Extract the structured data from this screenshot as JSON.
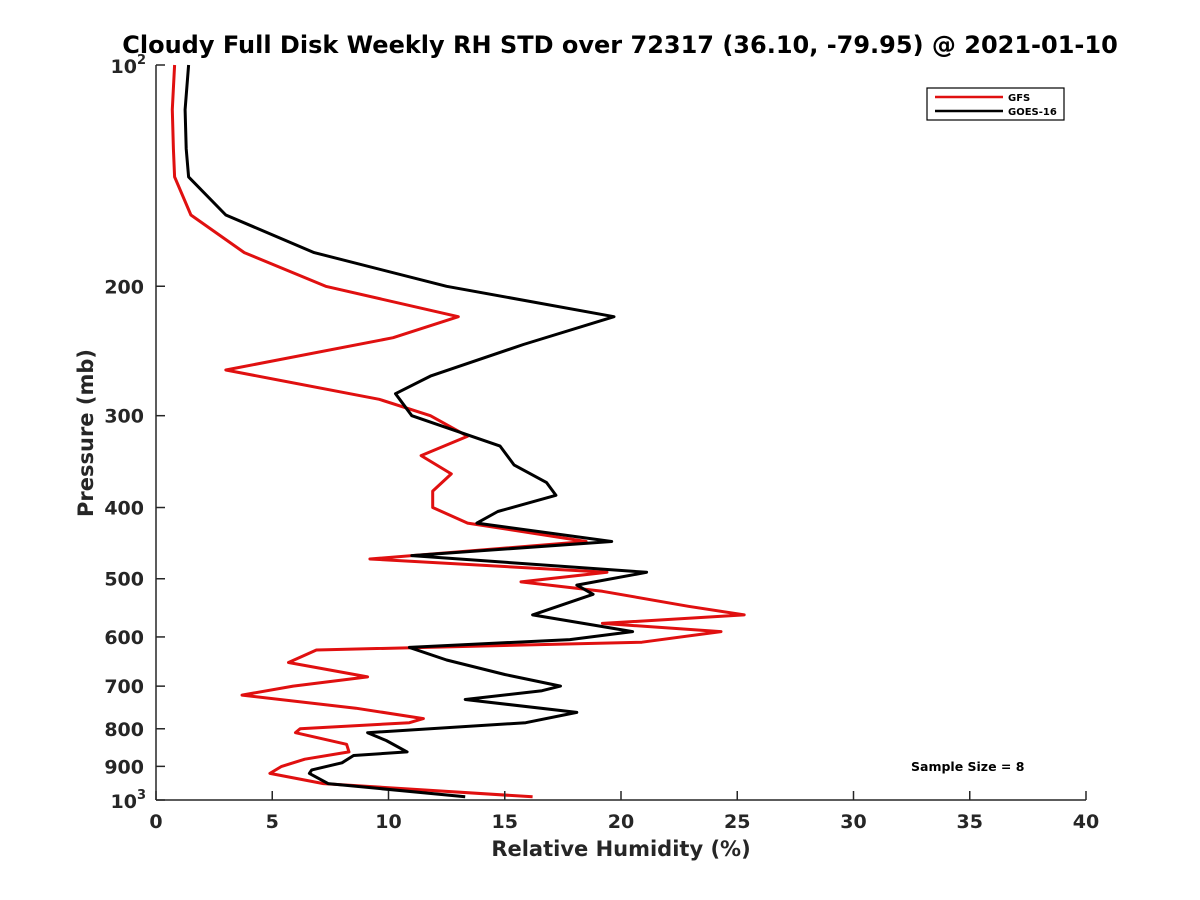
{
  "chart_data": {
    "type": "line",
    "title": "Cloudy Full Disk Weekly RH STD over 72317 (36.10, -79.95) @ 2021-01-10",
    "xlabel": "Relative Humidity (%)",
    "ylabel": "Pressure (mb)",
    "xlim": [
      0,
      40
    ],
    "ylim": [
      100,
      1000
    ],
    "y_scale": "log",
    "y_reversed": true,
    "grid": false,
    "legend_position": "top-right",
    "x_ticks": [
      0,
      5,
      10,
      15,
      20,
      25,
      30,
      35,
      40
    ],
    "x_tick_labels": [
      "0",
      "5",
      "10",
      "15",
      "20",
      "25",
      "30",
      "35",
      "40"
    ],
    "y_ticks": [
      200,
      300,
      400,
      500,
      600,
      700,
      800,
      900
    ],
    "y_tick_labels": [
      "200",
      "300",
      "400",
      "500",
      "600",
      "700",
      "800",
      "900"
    ],
    "y_min_label": {
      "base": "10",
      "exp": "2"
    },
    "y_max_label": {
      "base": "10",
      "exp": "3"
    },
    "annotation": "Sample Size = 8",
    "series": [
      {
        "name": "GFS",
        "color": "#e01010",
        "points": [
          [
            0.8,
            100
          ],
          [
            0.7,
            115
          ],
          [
            0.75,
            130
          ],
          [
            0.8,
            142
          ],
          [
            1.5,
            160
          ],
          [
            3.8,
            180
          ],
          [
            7.3,
            200
          ],
          [
            13,
            220
          ],
          [
            10.2,
            235
          ],
          [
            3.0,
            260
          ],
          [
            9.6,
            285
          ],
          [
            11.8,
            300
          ],
          [
            13.4,
            320
          ],
          [
            11.4,
            340
          ],
          [
            12.7,
            360
          ],
          [
            11.9,
            380
          ],
          [
            11.9,
            400
          ],
          [
            13.4,
            420
          ],
          [
            18.5,
            445
          ],
          [
            9.2,
            470
          ],
          [
            19.4,
            490
          ],
          [
            15.7,
            505
          ],
          [
            19.2,
            520
          ],
          [
            22.9,
            545
          ],
          [
            25.3,
            560
          ],
          [
            19.2,
            575
          ],
          [
            24.3,
            590
          ],
          [
            20.9,
            610
          ],
          [
            6.9,
            625
          ],
          [
            5.7,
            650
          ],
          [
            9.1,
            680
          ],
          [
            5.9,
            700
          ],
          [
            3.7,
            720
          ],
          [
            8.6,
            750
          ],
          [
            11.5,
            775
          ],
          [
            10.9,
            785
          ],
          [
            6.2,
            800
          ],
          [
            6.0,
            810
          ],
          [
            8.2,
            840
          ],
          [
            8.3,
            860
          ],
          [
            6.4,
            880
          ],
          [
            5.4,
            900
          ],
          [
            4.9,
            920
          ],
          [
            7.2,
            950
          ],
          [
            16.2,
            990
          ]
        ]
      },
      {
        "name": "GOES-16",
        "color": "#000000",
        "points": [
          [
            1.4,
            100
          ],
          [
            1.25,
            115
          ],
          [
            1.3,
            130
          ],
          [
            1.4,
            142
          ],
          [
            3.0,
            160
          ],
          [
            6.8,
            180
          ],
          [
            12.5,
            200
          ],
          [
            19.7,
            220
          ],
          [
            15.8,
            240
          ],
          [
            11.8,
            265
          ],
          [
            10.3,
            280
          ],
          [
            11.0,
            300
          ],
          [
            14.8,
            330
          ],
          [
            15.4,
            350
          ],
          [
            16.8,
            370
          ],
          [
            17.2,
            385
          ],
          [
            14.7,
            405
          ],
          [
            13.8,
            420
          ],
          [
            19.6,
            445
          ],
          [
            11.0,
            465
          ],
          [
            21.1,
            490
          ],
          [
            18.1,
            510
          ],
          [
            18.8,
            525
          ],
          [
            16.2,
            560
          ],
          [
            20.5,
            590
          ],
          [
            17.8,
            605
          ],
          [
            10.9,
            620
          ],
          [
            12.5,
            645
          ],
          [
            15.0,
            675
          ],
          [
            17.4,
            700
          ],
          [
            16.6,
            710
          ],
          [
            13.3,
            730
          ],
          [
            18.1,
            760
          ],
          [
            15.9,
            785
          ],
          [
            9.1,
            810
          ],
          [
            9.9,
            830
          ],
          [
            10.8,
            860
          ],
          [
            8.5,
            870
          ],
          [
            8.0,
            890
          ],
          [
            6.7,
            910
          ],
          [
            6.6,
            920
          ],
          [
            7.4,
            950
          ],
          [
            13.3,
            990
          ]
        ]
      }
    ]
  }
}
